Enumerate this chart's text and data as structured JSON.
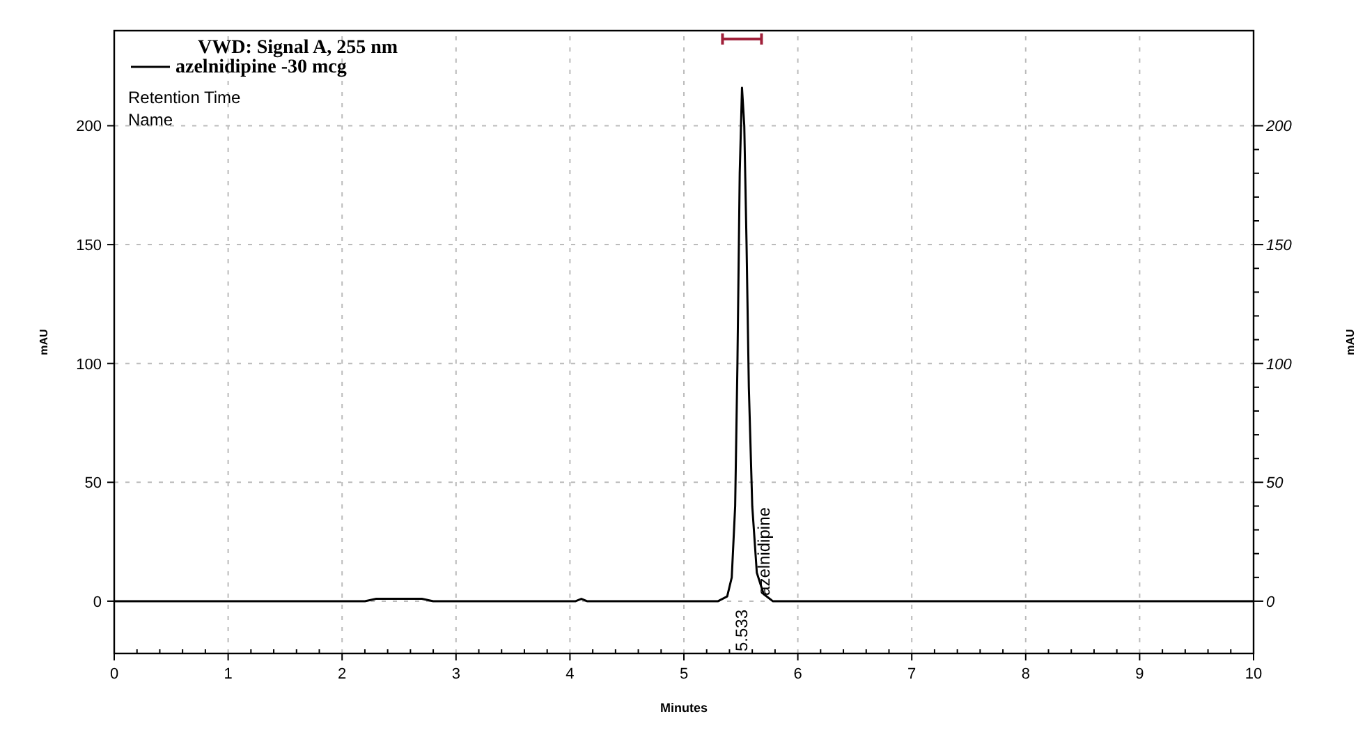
{
  "chart_data": {
    "type": "line",
    "xlabel": "Minutes",
    "ylabel": "mAU",
    "y2label": "mAU",
    "xlim": [
      0,
      10
    ],
    "xticks": [
      0,
      1,
      2,
      3,
      4,
      5,
      6,
      7,
      8,
      9,
      10
    ],
    "ylim": [
      -22,
      240
    ],
    "yticks": [
      0,
      50,
      100,
      150,
      200
    ],
    "y2lim": [
      -22,
      240
    ],
    "y2ticks": [
      0,
      50,
      100,
      150,
      200
    ],
    "grid": true,
    "legend": "top left",
    "marker": "none",
    "line_style": "solid",
    "series": [
      {
        "name": "VWD: Signal A, 255 nm\nazelnidipine -30 mcg",
        "color": "#000000",
        "x": [
          0,
          1,
          2,
          2.2,
          2.3,
          2.4,
          2.5,
          2.7,
          2.8,
          3,
          4,
          4.05,
          4.1,
          4.15,
          5,
          5.3,
          5.38,
          5.42,
          5.45,
          5.47,
          5.49,
          5.51,
          5.53,
          5.55,
          5.57,
          5.6,
          5.64,
          5.7,
          5.78,
          6,
          7,
          8,
          9,
          10
        ],
        "values": [
          0,
          0,
          0,
          0,
          1,
          1,
          1,
          1,
          0,
          0,
          0,
          0,
          1,
          0,
          0,
          0,
          2,
          10,
          40,
          100,
          180,
          216,
          200,
          150,
          90,
          40,
          12,
          3,
          0,
          0,
          0,
          0,
          0,
          0
        ]
      }
    ],
    "annotations": [
      "Retention Time",
      "Name",
      "5.533",
      "azelnidipine"
    ]
  }
}
